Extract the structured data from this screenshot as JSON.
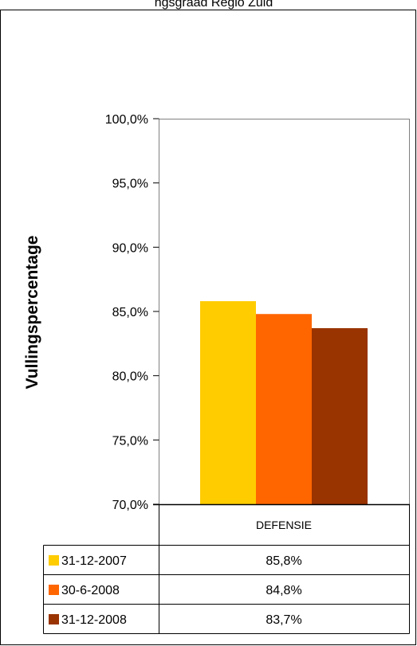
{
  "chart_data": {
    "type": "bar",
    "title": "ngsgraad Regio Zuid",
    "xlabel": "",
    "ylabel": "Vullingspercentage",
    "categories": [
      "DEFENSIE"
    ],
    "y_ticks": [
      "70,0%",
      "75,0%",
      "80,0%",
      "85,0%",
      "90,0%",
      "95,0%",
      "100,0%"
    ],
    "ylim": [
      70,
      100
    ],
    "grid": false,
    "legend": "data-table-below",
    "series": [
      {
        "name": "31-12-2007",
        "color": "#ffcc00",
        "values": [
          85.8
        ],
        "value_labels": [
          "85,8%"
        ]
      },
      {
        "name": "30-6-2008",
        "color": "#ff6600",
        "values": [
          84.8
        ],
        "value_labels": [
          "84,8%"
        ]
      },
      {
        "name": "31-12-2008",
        "color": "#993300",
        "values": [
          83.7
        ],
        "value_labels": [
          "83,7%"
        ]
      }
    ]
  }
}
